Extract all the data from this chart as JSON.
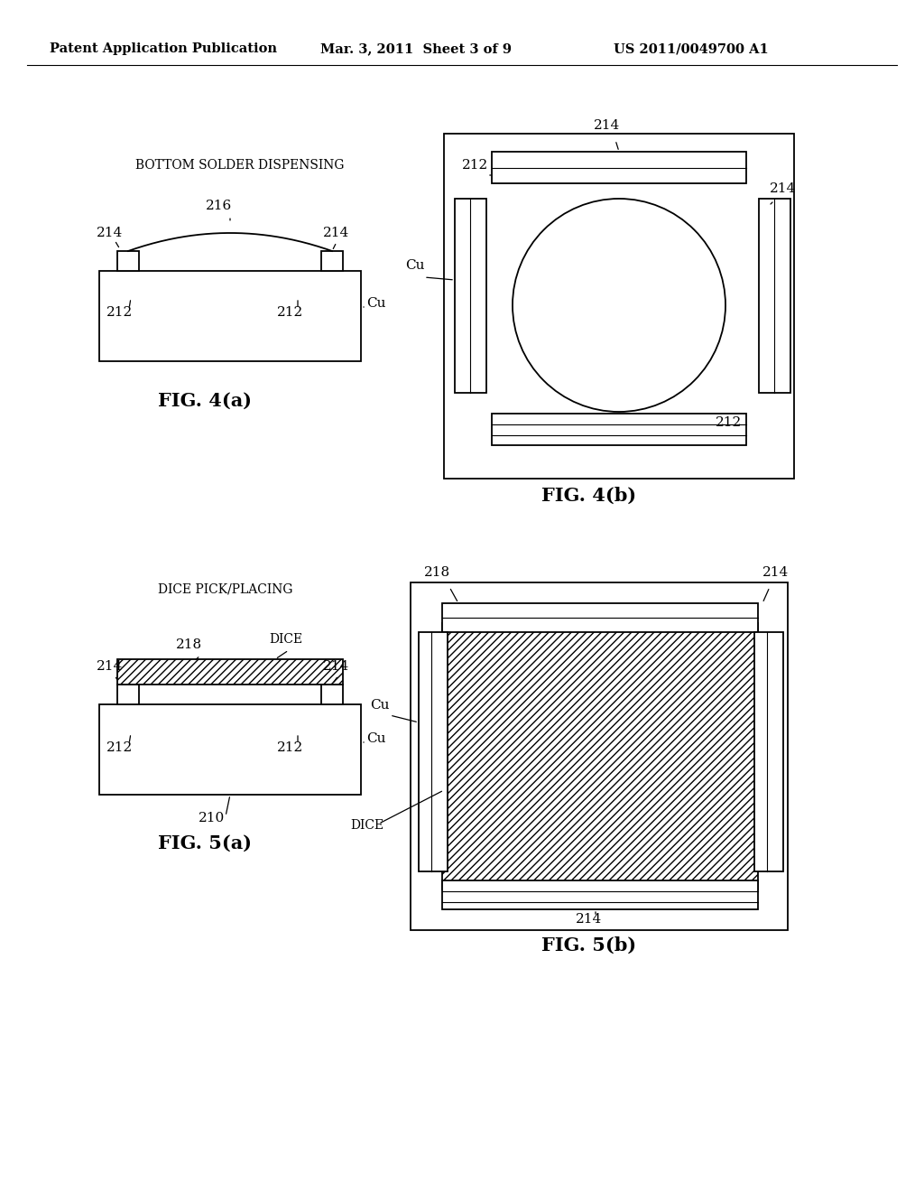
{
  "header_left": "Patent Application Publication",
  "header_mid": "Mar. 3, 2011  Sheet 3 of 9",
  "header_right": "US 2011/0049700 A1",
  "bg_color": "#ffffff"
}
